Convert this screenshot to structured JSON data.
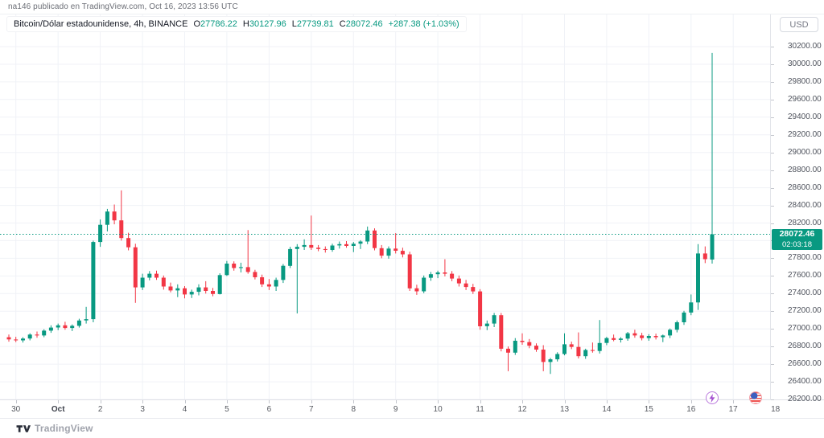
{
  "attribution": "na146 publicado en TradingView.com, Oct 16, 2023 13:56 UTC",
  "header": {
    "currency_button_label": "USD"
  },
  "legend": {
    "symbol": "Bitcoin/Dólar estadounidense, 4h, BINANCE",
    "open_label": "O",
    "open_value": "27786.22",
    "high_label": "H",
    "high_value": "30127.96",
    "low_label": "L",
    "low_value": "27739.81",
    "close_label": "C",
    "close_value": "28072.46",
    "change": "+287.38 (+1.03%)"
  },
  "price_badge": {
    "price": "28072.46",
    "countdown": "02:03:18"
  },
  "footer": {
    "logo_text": "TradingView"
  },
  "event_markers": [
    {
      "name": "lightning-event-icon"
    },
    {
      "name": "us-flag-event-icon"
    }
  ],
  "colors": {
    "up": "#089981",
    "down": "#F23645",
    "accent": "#089981",
    "grid": "#f0f2f7",
    "axis_text": "#4e525c",
    "badge_bg": "#089981"
  },
  "chart_data": {
    "type": "candlestick",
    "title": "Bitcoin/Dólar estadounidense, 4h, BINANCE",
    "exchange": "BINANCE",
    "interval": "4h",
    "ylabel": "USD",
    "ylim": [
      26200,
      30200
    ],
    "y_tick_step": 200,
    "grid": true,
    "last_price": 28072.46,
    "x_ticks": [
      {
        "label": "30",
        "i": 1
      },
      {
        "label": "Oct",
        "i": 7,
        "strong": true
      },
      {
        "label": "2",
        "i": 13
      },
      {
        "label": "3",
        "i": 19
      },
      {
        "label": "4",
        "i": 25
      },
      {
        "label": "5",
        "i": 31
      },
      {
        "label": "6",
        "i": 37
      },
      {
        "label": "7",
        "i": 43
      },
      {
        "label": "8",
        "i": 49
      },
      {
        "label": "9",
        "i": 55
      },
      {
        "label": "10",
        "i": 61
      },
      {
        "label": "11",
        "i": 67
      },
      {
        "label": "12",
        "i": 73
      },
      {
        "label": "13",
        "i": 79
      },
      {
        "label": "14",
        "i": 85
      },
      {
        "label": "15",
        "i": 91
      },
      {
        "label": "16",
        "i": 97
      },
      {
        "label": "17",
        "i": 103
      },
      {
        "label": "18",
        "i": 109
      }
    ],
    "candles": [
      [
        26905,
        26935,
        26855,
        26880
      ],
      [
        26880,
        26910,
        26850,
        26870
      ],
      [
        26870,
        26905,
        26845,
        26890
      ],
      [
        26890,
        26950,
        26870,
        26935
      ],
      [
        26935,
        26970,
        26900,
        26925
      ],
      [
        26925,
        26995,
        26905,
        26980
      ],
      [
        26980,
        27040,
        26955,
        27015
      ],
      [
        27015,
        27060,
        26985,
        27040
      ],
      [
        27040,
        27080,
        26990,
        27010
      ],
      [
        27010,
        27050,
        26975,
        27035
      ],
      [
        27035,
        27115,
        27015,
        27095
      ],
      [
        27095,
        27250,
        27060,
        27110
      ],
      [
        27110,
        28000,
        27075,
        27985
      ],
      [
        27985,
        28240,
        27930,
        28180
      ],
      [
        28180,
        28360,
        28105,
        28330
      ],
      [
        28330,
        28410,
        28185,
        28230
      ],
      [
        28230,
        28570,
        28000,
        28030
      ],
      [
        28030,
        28090,
        27890,
        27925
      ],
      [
        27925,
        27965,
        27295,
        27470
      ],
      [
        27470,
        27625,
        27440,
        27580
      ],
      [
        27580,
        27655,
        27550,
        27625
      ],
      [
        27625,
        27660,
        27555,
        27580
      ],
      [
        27580,
        27605,
        27445,
        27480
      ],
      [
        27480,
        27525,
        27415,
        27435
      ],
      [
        27435,
        27505,
        27360,
        27460
      ],
      [
        27460,
        27485,
        27345,
        27390
      ],
      [
        27390,
        27445,
        27350,
        27420
      ],
      [
        27420,
        27505,
        27380,
        27470
      ],
      [
        27470,
        27540,
        27400,
        27430
      ],
      [
        27430,
        27465,
        27370,
        27395
      ],
      [
        27395,
        27630,
        27390,
        27610
      ],
      [
        27610,
        27770,
        27600,
        27740
      ],
      [
        27740,
        27765,
        27660,
        27690
      ],
      [
        27690,
        27750,
        27640,
        27700
      ],
      [
        27700,
        28120,
        27625,
        27645
      ],
      [
        27645,
        27670,
        27560,
        27585
      ],
      [
        27585,
        27615,
        27475,
        27505
      ],
      [
        27505,
        27565,
        27440,
        27480
      ],
      [
        27480,
        27580,
        27430,
        27555
      ],
      [
        27555,
        27735,
        27520,
        27715
      ],
      [
        27715,
        27930,
        27690,
        27905
      ],
      [
        27905,
        27960,
        27175,
        27930
      ],
      [
        27930,
        28015,
        27895,
        27950
      ],
      [
        27950,
        28285,
        27895,
        27920
      ],
      [
        27920,
        27950,
        27880,
        27905
      ],
      [
        27905,
        27935,
        27865,
        27895
      ],
      [
        27895,
        27965,
        27875,
        27945
      ],
      [
        27945,
        27990,
        27910,
        27960
      ],
      [
        27960,
        27995,
        27920,
        27940
      ],
      [
        27940,
        27985,
        27870,
        27965
      ],
      [
        27965,
        28005,
        27905,
        27990
      ],
      [
        27990,
        28160,
        27960,
        28115
      ],
      [
        28115,
        28140,
        27890,
        27915
      ],
      [
        27915,
        27950,
        27800,
        27830
      ],
      [
        27830,
        27935,
        27795,
        27910
      ],
      [
        27910,
        28085,
        27855,
        27885
      ],
      [
        27885,
        27920,
        27810,
        27845
      ],
      [
        27845,
        27875,
        27430,
        27460
      ],
      [
        27460,
        27500,
        27385,
        27425
      ],
      [
        27425,
        27605,
        27405,
        27580
      ],
      [
        27580,
        27645,
        27545,
        27620
      ],
      [
        27620,
        27660,
        27575,
        27640
      ],
      [
        27640,
        27790,
        27595,
        27625
      ],
      [
        27625,
        27655,
        27540,
        27570
      ],
      [
        27570,
        27605,
        27480,
        27515
      ],
      [
        27515,
        27555,
        27440,
        27475
      ],
      [
        27475,
        27510,
        27395,
        27425
      ],
      [
        27425,
        27450,
        26990,
        27030
      ],
      [
        27030,
        27095,
        26985,
        27060
      ],
      [
        27060,
        27180,
        27020,
        27155
      ],
      [
        27155,
        27180,
        26745,
        26775
      ],
      [
        26775,
        26800,
        26520,
        26730
      ],
      [
        26730,
        26895,
        26705,
        26865
      ],
      [
        26865,
        26950,
        26820,
        26850
      ],
      [
        26850,
        26885,
        26780,
        26810
      ],
      [
        26810,
        26835,
        26740,
        26765
      ],
      [
        26765,
        26815,
        26520,
        26625
      ],
      [
        26625,
        26670,
        26490,
        26655
      ],
      [
        26655,
        26735,
        26630,
        26715
      ],
      [
        26715,
        26950,
        26700,
        26825
      ],
      [
        26825,
        26855,
        26770,
        26795
      ],
      [
        26795,
        26960,
        26665,
        26690
      ],
      [
        26690,
        26775,
        26660,
        26760
      ],
      [
        26760,
        26845,
        26730,
        26750
      ],
      [
        26750,
        27100,
        26720,
        26840
      ],
      [
        26840,
        26910,
        26815,
        26895
      ],
      [
        26895,
        26935,
        26860,
        26875
      ],
      [
        26875,
        26905,
        26845,
        26890
      ],
      [
        26890,
        26965,
        26865,
        26950
      ],
      [
        26950,
        26990,
        26900,
        26925
      ],
      [
        26925,
        26955,
        26870,
        26895
      ],
      [
        26895,
        26940,
        26865,
        26920
      ],
      [
        26920,
        26945,
        26880,
        26905
      ],
      [
        26905,
        26935,
        26850,
        26925
      ],
      [
        26925,
        27005,
        26895,
        26990
      ],
      [
        26990,
        27095,
        26960,
        27075
      ],
      [
        27075,
        27205,
        27045,
        27185
      ],
      [
        27185,
        27390,
        27155,
        27300
      ],
      [
        27300,
        27960,
        27215,
        27855
      ],
      [
        27855,
        27935,
        27745,
        27790
      ],
      [
        27786.22,
        30127.96,
        27739.81,
        28072.46
      ]
    ]
  }
}
